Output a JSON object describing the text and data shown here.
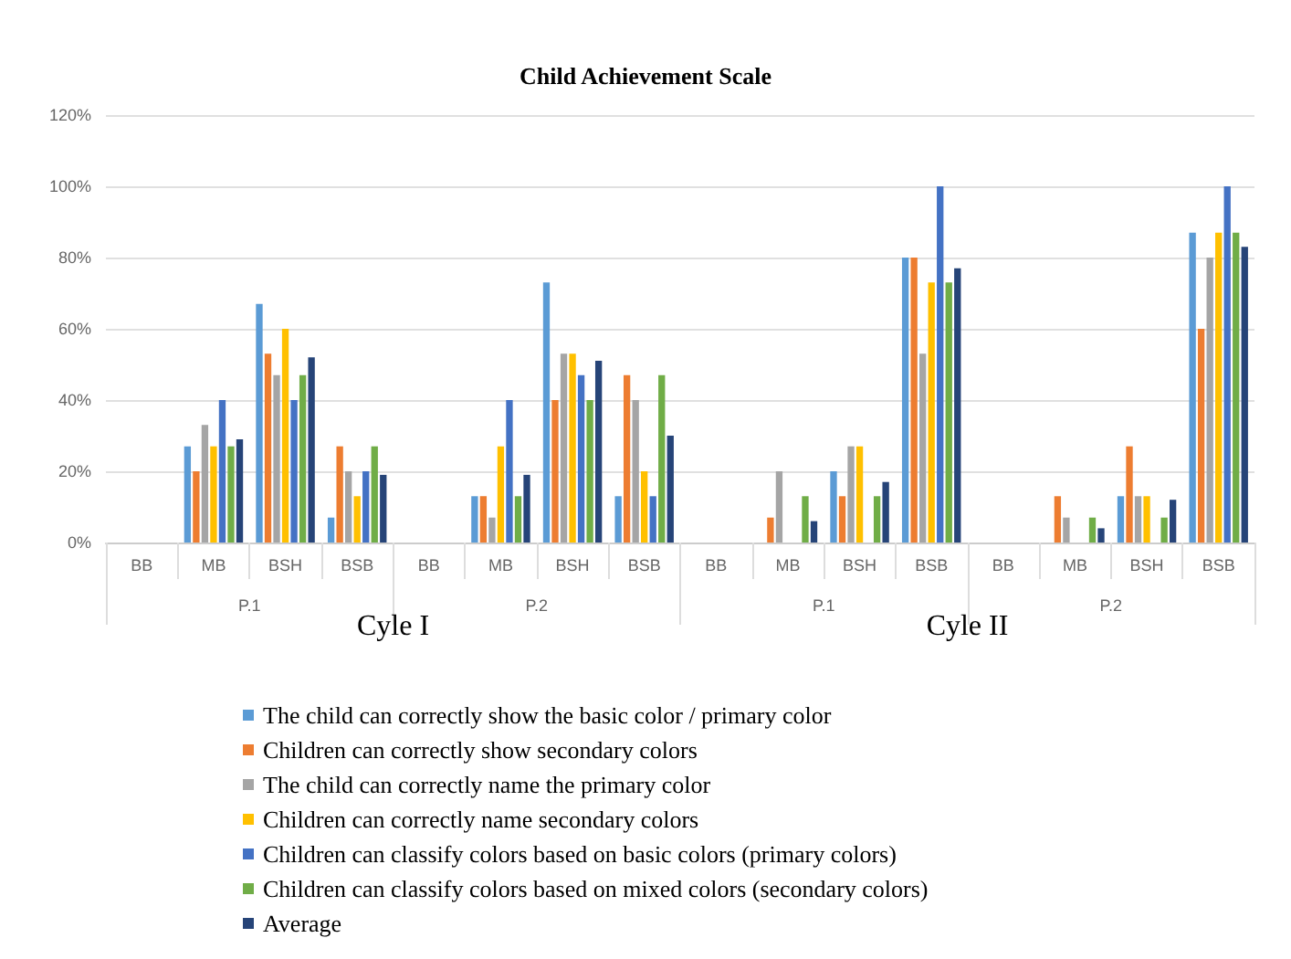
{
  "chart_data": {
    "type": "bar",
    "title": "Child Achievement Scale",
    "categories": [
      "BB",
      "MB",
      "BSH",
      "BSB",
      "BB",
      "MB",
      "BSH",
      "BSB",
      "BB",
      "MB",
      "BSH",
      "BSB",
      "BB",
      "MB",
      "BSH",
      "BSB"
    ],
    "annotations": [
      "P.1",
      "P.2",
      "P.1",
      "P.2",
      "Cyle I",
      "Cyle II"
    ],
    "series": [
      {
        "name": "The child can correctly show the basic color / primary color",
        "color": "#5b9bd5",
        "values": [
          0,
          27,
          67,
          7,
          0,
          13,
          73,
          13,
          0,
          0,
          20,
          80,
          0,
          0,
          13,
          87
        ]
      },
      {
        "name": "Children can correctly show secondary colors",
        "color": "#ed7d31",
        "values": [
          0,
          20,
          53,
          27,
          0,
          13,
          40,
          47,
          0,
          7,
          13,
          80,
          0,
          13,
          27,
          60
        ]
      },
      {
        "name": "The child can correctly name the primary color",
        "color": "#a5a5a5",
        "values": [
          0,
          33,
          47,
          20,
          0,
          7,
          53,
          40,
          0,
          20,
          27,
          53,
          0,
          7,
          13,
          80
        ]
      },
      {
        "name": "Children can correctly name secondary colors",
        "color": "#ffc000",
        "values": [
          0,
          27,
          60,
          13,
          0,
          27,
          53,
          20,
          0,
          0,
          27,
          73,
          0,
          0,
          13,
          87
        ]
      },
      {
        "name": "Children can classify colors based on basic colors (primary colors)",
        "color": "#4472c4",
        "values": [
          0,
          40,
          40,
          20,
          0,
          40,
          47,
          13,
          0,
          0,
          0,
          100,
          0,
          0,
          0,
          100
        ]
      },
      {
        "name": "Children can classify colors based on mixed colors (secondary colors)",
        "color": "#70ad47",
        "values": [
          0,
          27,
          47,
          27,
          0,
          13,
          40,
          47,
          0,
          13,
          13,
          73,
          0,
          7,
          7,
          87
        ]
      },
      {
        "name": "Average",
        "color": "#264478",
        "values": [
          0,
          29,
          52,
          19,
          0,
          19,
          51,
          30,
          0,
          6,
          17,
          77,
          0,
          4,
          12,
          83
        ]
      }
    ],
    "ylim": [
      0,
      120
    ],
    "yticks": [
      {
        "value": 0,
        "label": "0%"
      },
      {
        "value": 20,
        "label": "20%"
      },
      {
        "value": 40,
        "label": "40%"
      },
      {
        "value": 60,
        "label": "60%"
      },
      {
        "value": 80,
        "label": "80%"
      },
      {
        "value": 100,
        "label": "100%"
      },
      {
        "value": 120,
        "label": "120%"
      }
    ],
    "grid": "y",
    "legend": "bottom"
  }
}
